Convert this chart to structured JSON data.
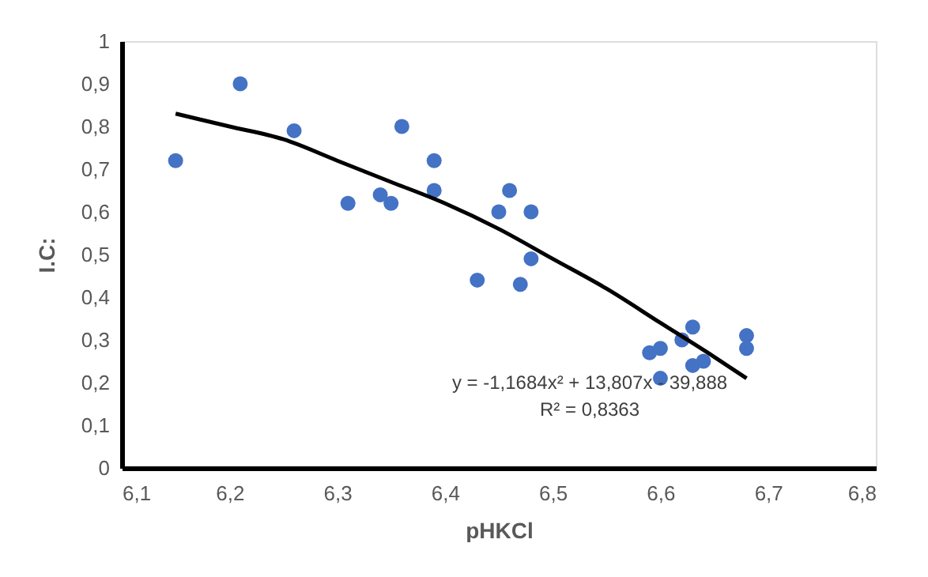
{
  "chart_data": {
    "type": "scatter",
    "xlabel": "pHKCl",
    "ylabel": "I.C:",
    "xlim": [
      6.1,
      6.8
    ],
    "ylim": [
      0,
      1
    ],
    "xticks": [
      {
        "value": 6.1,
        "label": "6,1"
      },
      {
        "value": 6.2,
        "label": "6,2"
      },
      {
        "value": 6.3,
        "label": "6,3"
      },
      {
        "value": 6.4,
        "label": "6,4"
      },
      {
        "value": 6.5,
        "label": "6,5"
      },
      {
        "value": 6.6,
        "label": "6,6"
      },
      {
        "value": 6.7,
        "label": "6,7"
      },
      {
        "value": 6.8,
        "label": "6,8"
      }
    ],
    "yticks": [
      0,
      {
        "value": 0.1,
        "label": "0,1"
      },
      {
        "value": 0.2,
        "label": "0,2"
      },
      {
        "value": 0.3,
        "label": "0,3"
      },
      {
        "value": 0.4,
        "label": "0,4"
      },
      {
        "value": 0.5,
        "label": "0,5"
      },
      {
        "value": 0.6,
        "label": "0,6"
      },
      {
        "value": 0.7,
        "label": "0,7"
      },
      {
        "value": 0.8,
        "label": "0,8"
      },
      {
        "value": 0.9,
        "label": "0,9"
      },
      1
    ],
    "grid": false,
    "series": [
      {
        "color": "#4472c4",
        "marker": "circle",
        "x": [
          6.15,
          6.21,
          6.26,
          6.31,
          6.34,
          6.35,
          6.36,
          6.39,
          6.39,
          6.43,
          6.45,
          6.46,
          6.48,
          6.48,
          6.47,
          6.59,
          6.6,
          6.6,
          6.62,
          6.63,
          6.63,
          6.64,
          6.68,
          6.68
        ],
        "values": [
          0.72,
          0.9,
          0.79,
          0.62,
          0.64,
          0.62,
          0.8,
          0.72,
          0.65,
          0.44,
          0.6,
          0.65,
          0.6,
          0.49,
          0.43,
          0.27,
          0.28,
          0.21,
          0.3,
          0.33,
          0.24,
          0.25,
          0.31,
          0.28
        ]
      },
      {
        "type": "line",
        "color": "#000000",
        "marker": "none",
        "line_style": "solid",
        "x": [
          6.15,
          6.2,
          6.25,
          6.3,
          6.35,
          6.4,
          6.45,
          6.5,
          6.55,
          6.6,
          6.65,
          6.68
        ],
        "values": [
          0.83,
          0.8,
          0.77,
          0.72,
          0.67,
          0.62,
          0.56,
          0.49,
          0.42,
          0.34,
          0.26,
          0.21
        ]
      }
    ],
    "annotations": [
      "y = -1,1684x² + 13,807x - 39,888",
      "R² = 0,8363"
    ]
  }
}
